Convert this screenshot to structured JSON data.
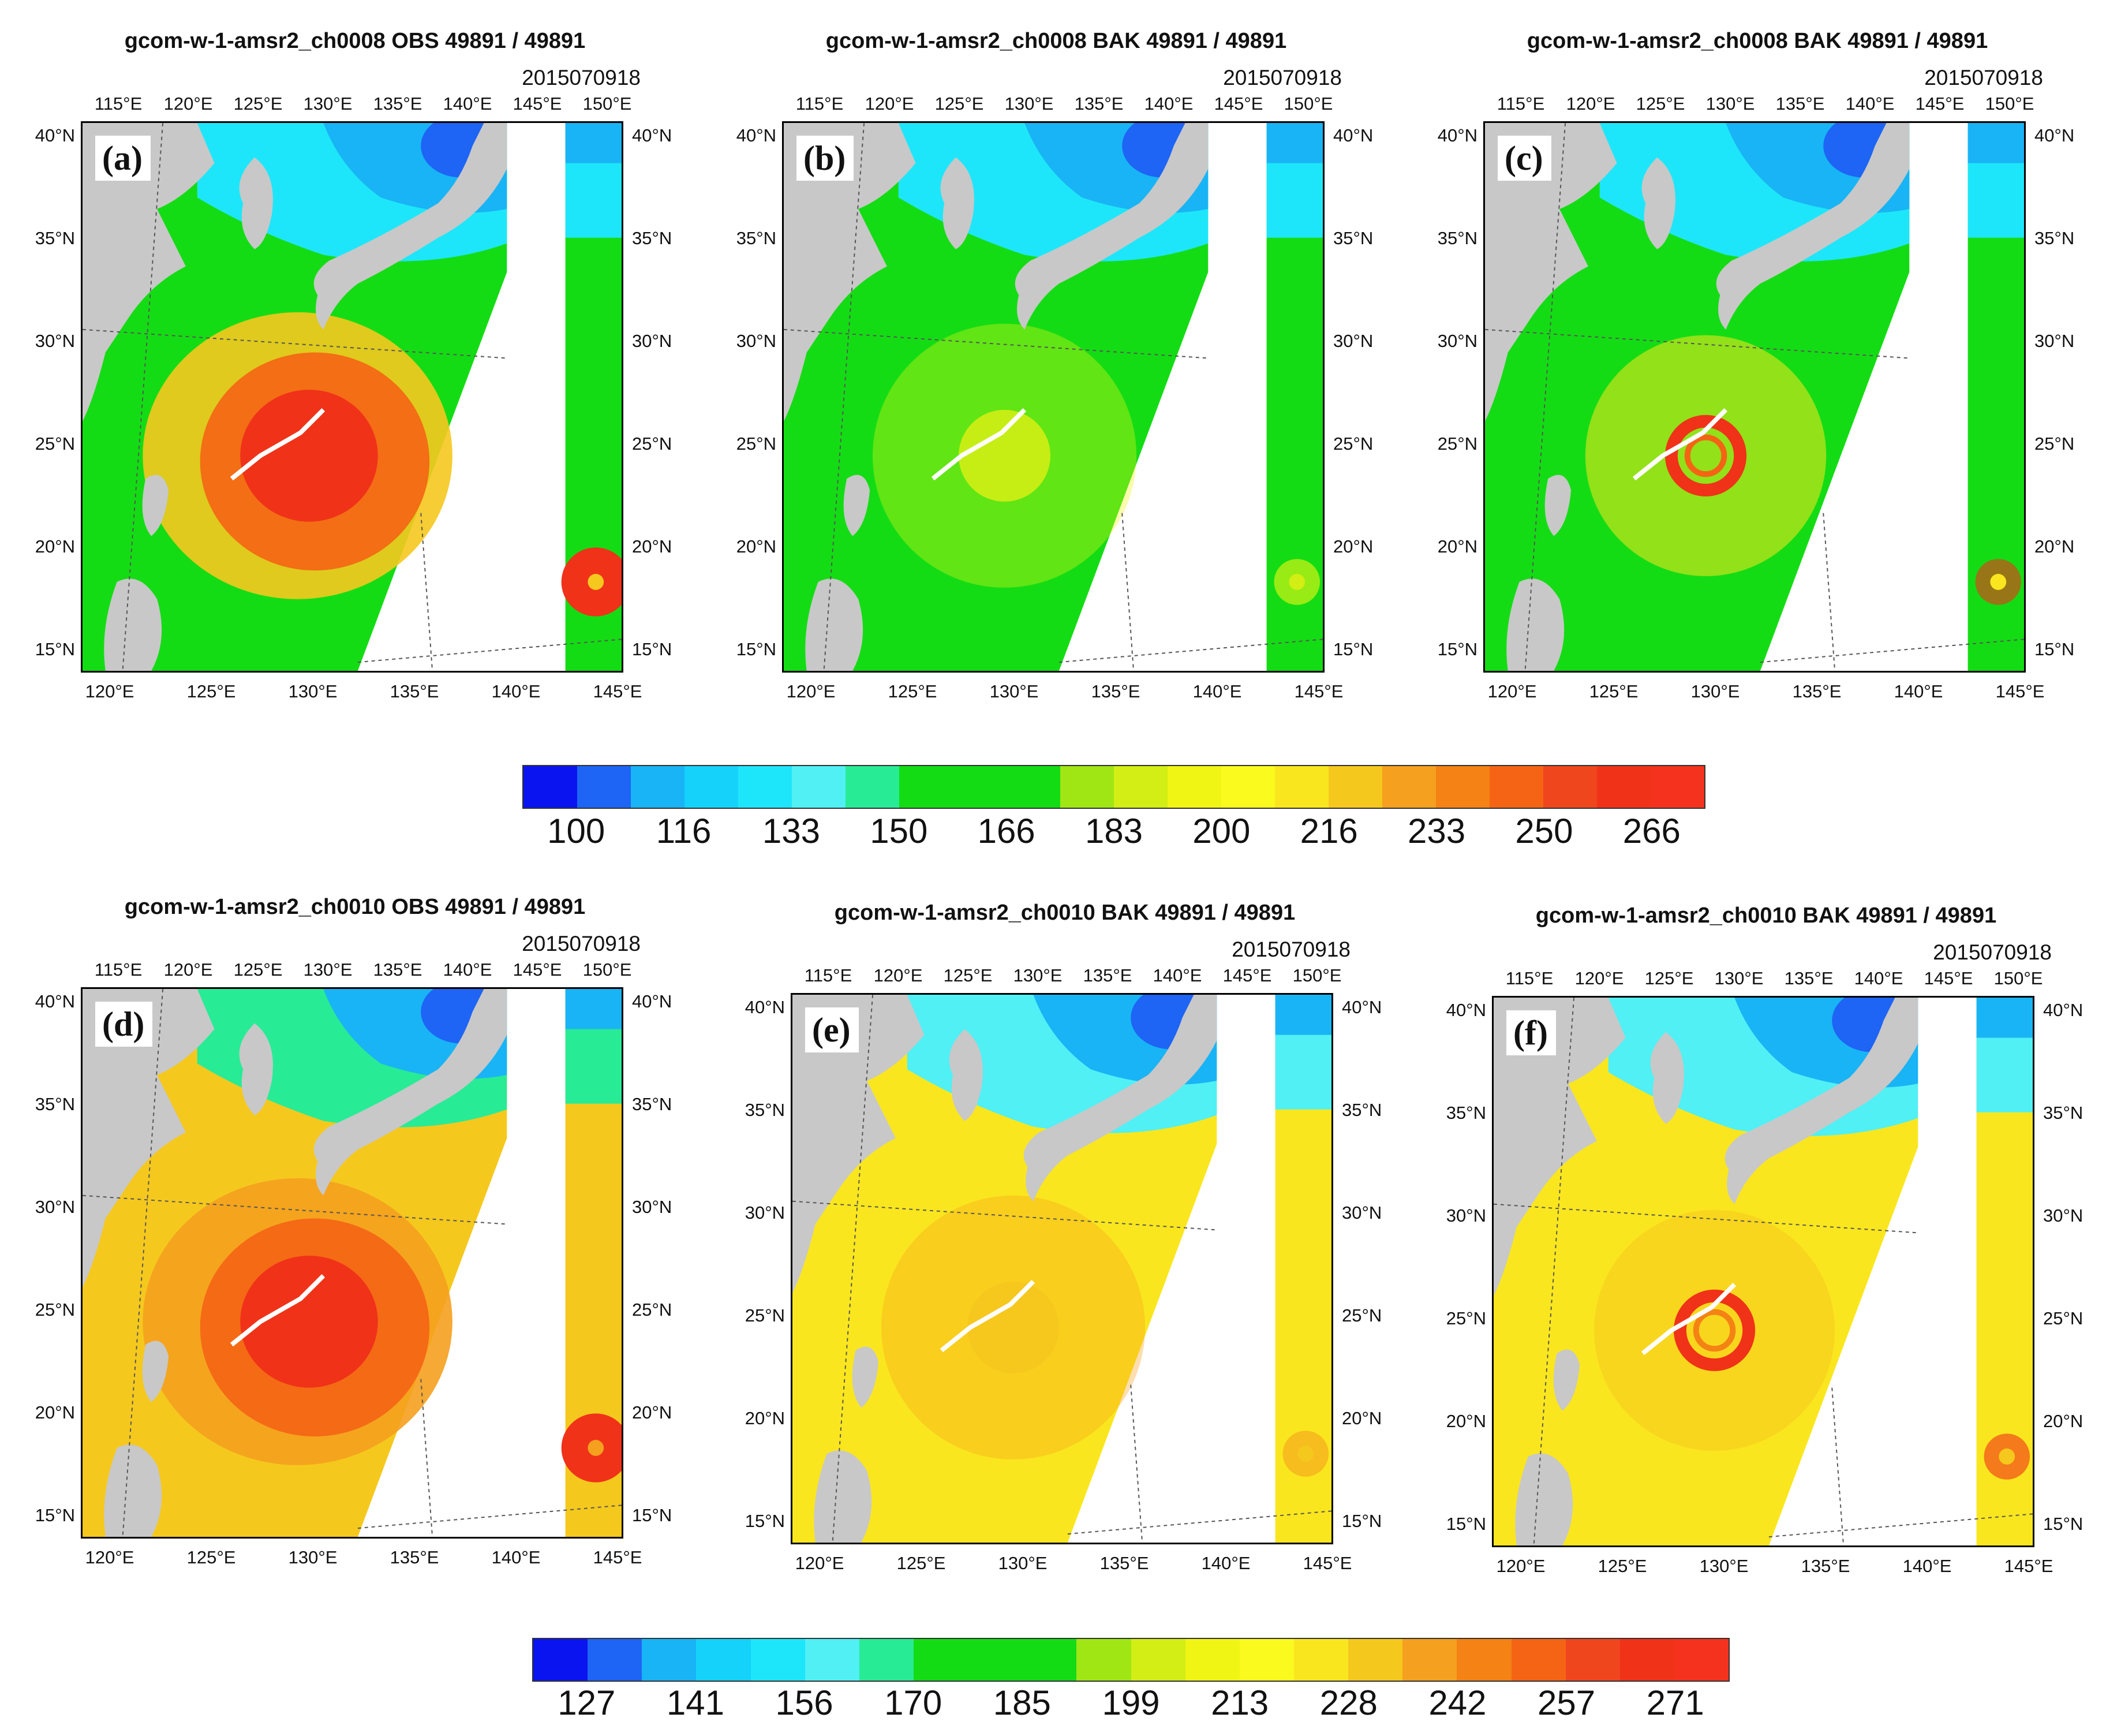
{
  "panels": [
    {
      "id": "a",
      "title": "gcom-w-1-amsr2_ch0008  OBS  49891 / 49891",
      "date": "2015070918",
      "label": "(a)",
      "scheme": "obs8"
    },
    {
      "id": "b",
      "title": "gcom-w-1-amsr2_ch0008  BAK  49891 / 49891",
      "date": "2015070918",
      "label": "(b)",
      "scheme": "bak8"
    },
    {
      "id": "c",
      "title": "gcom-w-1-amsr2_ch0008  BAK  49891 / 49891",
      "date": "2015070918",
      "label": "(c)",
      "scheme": "bak8c"
    },
    {
      "id": "d",
      "title": "gcom-w-1-amsr2_ch0010  OBS  49891 / 49891",
      "date": "2015070918",
      "label": "(d)",
      "scheme": "obs10"
    },
    {
      "id": "e",
      "title": "gcom-w-1-amsr2_ch0010  BAK  49891 / 49891",
      "date": "2015070918",
      "label": "(e)",
      "scheme": "bak10"
    },
    {
      "id": "f",
      "title": "gcom-w-1-amsr2_ch0010  BAK  49891 / 49891",
      "date": "2015070918",
      "label": "(f)",
      "scheme": "bak10f"
    }
  ],
  "axes": {
    "top_lon": [
      "115°E",
      "120°E",
      "125°E",
      "130°E",
      "135°E",
      "140°E",
      "145°E",
      "150°E"
    ],
    "bottom_lon": [
      "120°E",
      "125°E",
      "130°E",
      "135°E",
      "140°E",
      "145°E"
    ],
    "lat": [
      "40°N",
      "35°N",
      "30°N",
      "25°N",
      "20°N",
      "15°N"
    ]
  },
  "colorbars": [
    {
      "name": "ch0008",
      "ticks": [
        "100",
        "116",
        "133",
        "150",
        "166",
        "183",
        "200",
        "216",
        "233",
        "250",
        "266"
      ]
    },
    {
      "name": "ch0010",
      "ticks": [
        "127",
        "141",
        "156",
        "170",
        "185",
        "199",
        "213",
        "228",
        "242",
        "257",
        "271"
      ]
    }
  ],
  "colors": [
    "#0a14f0",
    "#1e64f5",
    "#19b4f5",
    "#14d2fa",
    "#1ee6fa",
    "#50f0f5",
    "#28eb96",
    "#14dc14",
    "#14dc14",
    "#14dc14",
    "#a0e614",
    "#d2ee14",
    "#f0f514",
    "#fafa1e",
    "#fae61e",
    "#f5c81e",
    "#f5a01e",
    "#f58214",
    "#f56414",
    "#f0461e",
    "#f03219",
    "#f5321e"
  ]
}
